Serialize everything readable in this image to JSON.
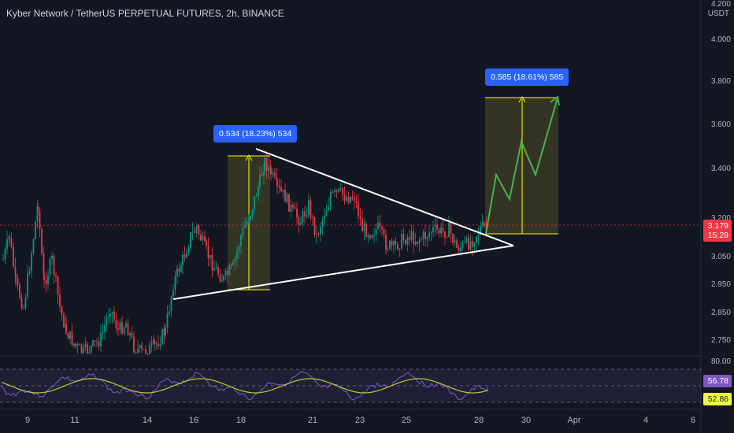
{
  "header": {
    "title": "Kyber Network / TetherUS PERPETUAL FUTURES, 2h, BINANCE"
  },
  "price_axis": {
    "unit": "USDT",
    "labels": [
      "4.200",
      "4.000",
      "3.800",
      "3.600",
      "3.400",
      "3.200",
      "3.050",
      "2.950",
      "2.850",
      "2.750"
    ]
  },
  "rsi_axis": {
    "top_label": "80.00"
  },
  "date_axis": {
    "labels": [
      "9",
      "11",
      "14",
      "16",
      "18",
      "21",
      "23",
      "25",
      "28",
      "30",
      "Apr",
      "4",
      "6"
    ]
  },
  "current_price": {
    "value": "3.179",
    "countdown": "15:29",
    "color": "#f23645"
  },
  "rsi_badges": {
    "rsi_value": "56.78",
    "ma_value": "52.86"
  },
  "measurements": [
    {
      "label": "0.534 (18.23%) 534"
    },
    {
      "label": "0.585 (18.61%) 585"
    }
  ],
  "colors": {
    "background": "#131722",
    "up_candle": "#089981",
    "down_candle": "#f23645",
    "measure_box": "#2962ff",
    "rsi_line": "#7e57c2",
    "rsi_ma": "#c0ca33",
    "target_line": "#ffff00",
    "projection": "#4caf50",
    "triangle": "#ffffff"
  }
}
